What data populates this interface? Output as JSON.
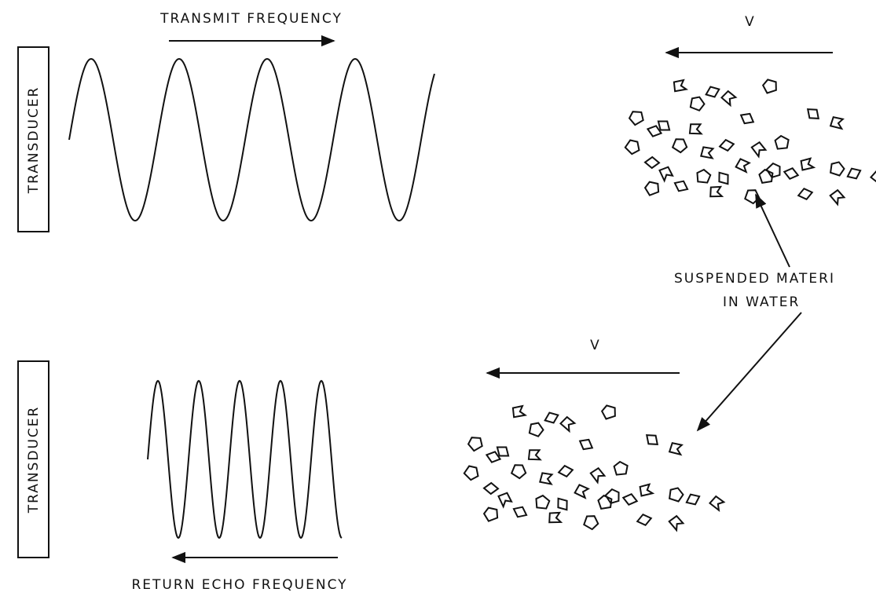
{
  "transmit": {
    "label": "TRANSMIT FREQUENCY",
    "transducer": "TRANSDUCER",
    "velocity": "V"
  },
  "material": {
    "line1": "SUSPENDED MATERI",
    "line2": "IN WATER"
  },
  "echo": {
    "label": "RETURN ECHO FREQUENCY",
    "transducer": "TRANSDUCER",
    "velocity": "V"
  }
}
